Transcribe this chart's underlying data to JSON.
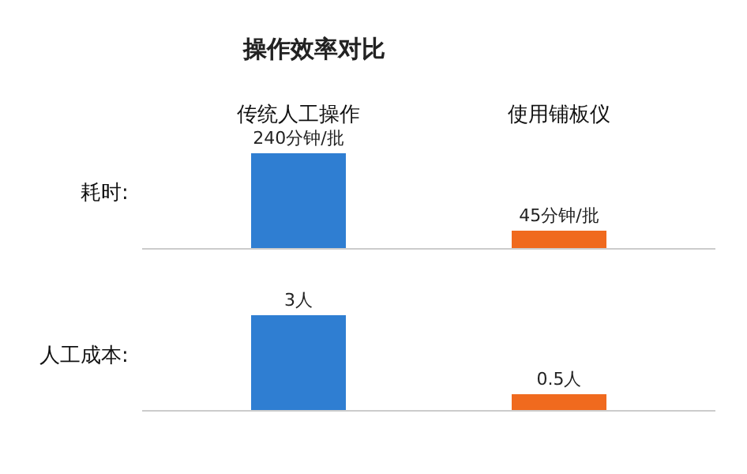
{
  "chart_data": [
    {
      "type": "bar",
      "title": "操作效率对比",
      "ylabel": "耗时:",
      "categories": [
        "传统人工操作",
        "使用铺板仪"
      ],
      "values": [
        240,
        45
      ],
      "colors": [
        "#2f7ed2",
        "#f06a1e"
      ],
      "value_labels": [
        "240分钟/批",
        "45分钟/批"
      ],
      "tick_labels": "x"
    },
    {
      "type": "bar",
      "ylabel": "人工成本:",
      "categories": [
        null,
        null
      ],
      "values": [
        3,
        0.5
      ],
      "colors": [
        "#2f7ed2",
        "#f06a1e"
      ],
      "value_labels": [
        "3人",
        "0.5人"
      ],
      "tick_labels": false
    }
  ]
}
